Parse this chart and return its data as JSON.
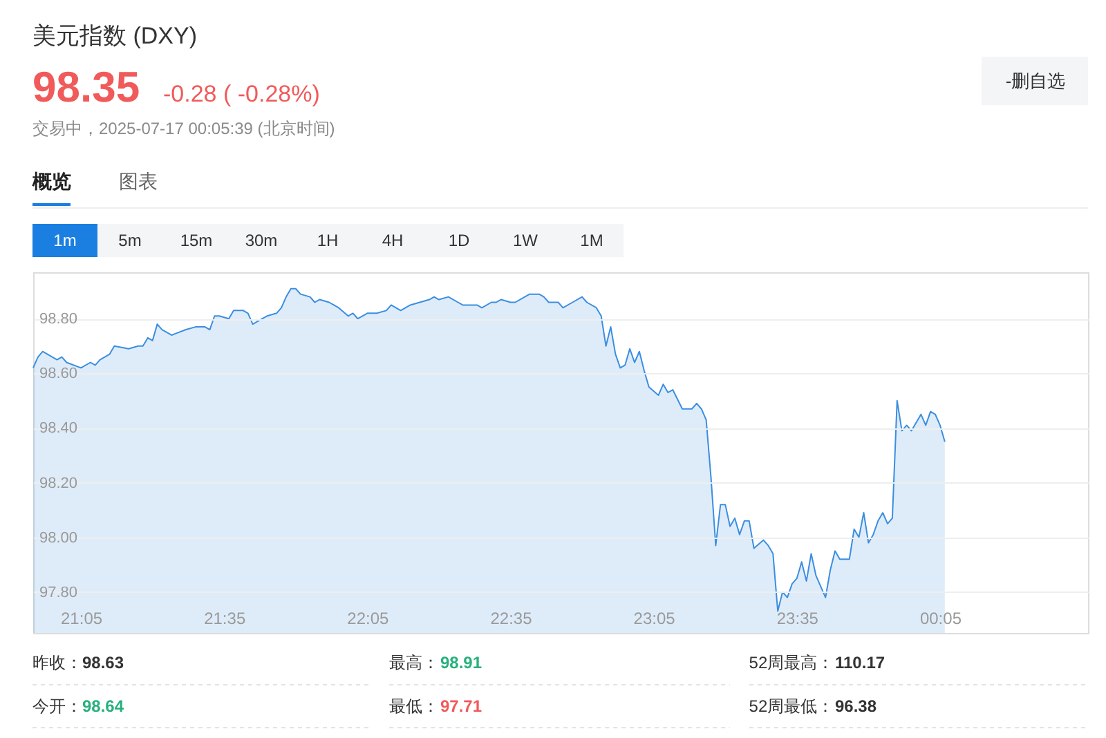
{
  "chart_data": {
    "type": "area",
    "title": "美元指数 (DXY)",
    "subtitle": "交易中，2025-07-17 00:05:39 (北京时间)",
    "annotations": [
      "98.35",
      "-0.28 ( -0.28%)",
      "-删自选",
      "概览",
      "图表",
      "1m",
      "5m",
      "15m",
      "30m",
      "1H",
      "4H",
      "1D",
      "1W",
      "1M",
      "昨收：",
      "98.63",
      "最高：",
      "98.91",
      "52周最高：",
      "110.17",
      "今开：",
      "98.64",
      "最低：",
      "97.71",
      "52周最低：",
      "96.38"
    ],
    "x": [
      "2025-07-16T20:55",
      "2025-07-16T20:56",
      "2025-07-16T20:57",
      "2025-07-16T20:59",
      "2025-07-16T21:00",
      "2025-07-16T21:01",
      "2025-07-16T21:02",
      "2025-07-16T21:05",
      "2025-07-16T21:07",
      "2025-07-16T21:08",
      "2025-07-16T21:09",
      "2025-07-16T21:11",
      "2025-07-16T21:12",
      "2025-07-16T21:15",
      "2025-07-16T21:17",
      "2025-07-16T21:18",
      "2025-07-16T21:19",
      "2025-07-16T21:20",
      "2025-07-16T21:21",
      "2025-07-16T21:22",
      "2025-07-16T21:24",
      "2025-07-16T21:27",
      "2025-07-16T21:29",
      "2025-07-16T21:31",
      "2025-07-16T21:32",
      "2025-07-16T21:33",
      "2025-07-16T21:34",
      "2025-07-16T21:36",
      "2025-07-16T21:37",
      "2025-07-16T21:39",
      "2025-07-16T21:40",
      "2025-07-16T21:41",
      "2025-07-16T21:43",
      "2025-07-16T21:44",
      "2025-07-16T21:46",
      "2025-07-16T21:47",
      "2025-07-16T21:48",
      "2025-07-16T21:49",
      "2025-07-16T21:50",
      "2025-07-16T21:51",
      "2025-07-16T21:53",
      "2025-07-16T21:54",
      "2025-07-16T21:55",
      "2025-07-16T21:57",
      "2025-07-16T21:58",
      "2025-07-16T21:59",
      "2025-07-16T22:01",
      "2025-07-16T22:02",
      "2025-07-16T22:03",
      "2025-07-16T22:04",
      "2025-07-16T22:05",
      "2025-07-16T22:07",
      "2025-07-16T22:09",
      "2025-07-16T22:10",
      "2025-07-16T22:12",
      "2025-07-16T22:14",
      "2025-07-16T22:16",
      "2025-07-16T22:18",
      "2025-07-16T22:19",
      "2025-07-16T22:20",
      "2025-07-16T22:22",
      "2025-07-16T22:24",
      "2025-07-16T22:25",
      "2025-07-16T22:28",
      "2025-07-16T22:29",
      "2025-07-16T22:31",
      "2025-07-16T22:32",
      "2025-07-16T22:33",
      "2025-07-16T22:35",
      "2025-07-16T22:36",
      "2025-07-16T22:38",
      "2025-07-16T22:39",
      "2025-07-16T22:41",
      "2025-07-16T22:42",
      "2025-07-16T22:43",
      "2025-07-16T22:45",
      "2025-07-16T22:46",
      "2025-07-16T22:48",
      "2025-07-16T22:50",
      "2025-07-16T22:51",
      "2025-07-16T22:53",
      "2025-07-16T22:54",
      "2025-07-16T22:55",
      "2025-07-16T22:56",
      "2025-07-16T22:57",
      "2025-07-16T22:58",
      "2025-07-16T22:59",
      "2025-07-16T23:00",
      "2025-07-16T23:01",
      "2025-07-16T23:02",
      "2025-07-16T23:03",
      "2025-07-16T23:04",
      "2025-07-16T23:06",
      "2025-07-16T23:07",
      "2025-07-16T23:08",
      "2025-07-16T23:09",
      "2025-07-16T23:11",
      "2025-07-16T23:13",
      "2025-07-16T23:14",
      "2025-07-16T23:15",
      "2025-07-16T23:16",
      "2025-07-16T23:17",
      "2025-07-16T23:18",
      "2025-07-16T23:19",
      "2025-07-16T23:20",
      "2025-07-16T23:21",
      "2025-07-16T23:22",
      "2025-07-16T23:23",
      "2025-07-16T23:24",
      "2025-07-16T23:25",
      "2025-07-16T23:26",
      "2025-07-16T23:28",
      "2025-07-16T23:29",
      "2025-07-16T23:30",
      "2025-07-16T23:31",
      "2025-07-16T23:32",
      "2025-07-16T23:33",
      "2025-07-16T23:34",
      "2025-07-16T23:35",
      "2025-07-16T23:36",
      "2025-07-16T23:37",
      "2025-07-16T23:38",
      "2025-07-16T23:39",
      "2025-07-16T23:41",
      "2025-07-16T23:42",
      "2025-07-16T23:43",
      "2025-07-16T23:44",
      "2025-07-16T23:46",
      "2025-07-16T23:47",
      "2025-07-16T23:48",
      "2025-07-16T23:49",
      "2025-07-16T23:50",
      "2025-07-16T23:51",
      "2025-07-16T23:52",
      "2025-07-16T23:53",
      "2025-07-16T23:54",
      "2025-07-16T23:55",
      "2025-07-16T23:56",
      "2025-07-16T23:57",
      "2025-07-16T23:58",
      "2025-07-16T23:59",
      "2025-07-17T00:00",
      "2025-07-17T00:01",
      "2025-07-17T00:02",
      "2025-07-17T00:03",
      "2025-07-17T00:04",
      "2025-07-17T00:05",
      "2025-07-17T00:06"
    ],
    "series": [
      {
        "color": "#3b8ee0",
        "values": [
          98.62,
          98.66,
          98.68,
          98.66,
          98.65,
          98.66,
          98.64,
          98.62,
          98.64,
          98.63,
          98.65,
          98.67,
          98.7,
          98.69,
          98.7,
          98.7,
          98.73,
          98.72,
          98.78,
          98.76,
          98.74,
          98.76,
          98.77,
          98.77,
          98.76,
          98.81,
          98.81,
          98.8,
          98.83,
          98.83,
          98.82,
          98.78,
          98.8,
          98.81,
          98.82,
          98.84,
          98.88,
          98.91,
          98.91,
          98.89,
          98.88,
          98.86,
          98.87,
          98.86,
          98.85,
          98.84,
          98.81,
          98.82,
          98.8,
          98.81,
          98.82,
          98.82,
          98.83,
          98.85,
          98.83,
          98.85,
          98.86,
          98.87,
          98.88,
          98.87,
          98.88,
          98.86,
          98.85,
          98.85,
          98.84,
          98.86,
          98.86,
          98.87,
          98.86,
          98.86,
          98.88,
          98.89,
          98.89,
          98.88,
          98.86,
          98.86,
          98.84,
          98.86,
          98.88,
          98.86,
          98.84,
          98.81,
          98.7,
          98.77,
          98.67,
          98.62,
          98.63,
          98.69,
          98.64,
          98.68,
          98.61,
          98.55,
          98.52,
          98.56,
          98.53,
          98.54,
          98.47,
          98.47,
          98.49,
          98.47,
          98.43,
          98.22,
          97.97,
          98.12,
          98.12,
          98.04,
          98.07,
          98.01,
          98.06,
          98.06,
          97.96,
          97.99,
          97.97,
          97.94,
          97.73,
          97.8,
          97.78,
          97.83,
          97.85,
          97.91,
          97.84,
          97.94,
          97.86,
          97.78,
          97.88,
          97.95,
          97.92,
          97.92,
          98.03,
          98.0,
          98.09,
          97.98,
          98.01,
          98.06,
          98.09,
          98.05,
          98.07,
          98.5,
          98.39,
          98.41,
          98.39,
          98.42,
          98.45,
          98.41,
          98.46,
          98.45,
          98.41,
          98.35
        ]
      }
    ],
    "xlim": [
      "2025-07-16T20:55",
      "2025-07-17T00:36"
    ],
    "ylim": [
      97.65,
      98.97
    ],
    "xticks": [
      {
        "value": "2025-07-16T21:05",
        "label": "21:05"
      },
      {
        "value": "2025-07-16T21:35",
        "label": "21:35"
      },
      {
        "value": "2025-07-16T22:05",
        "label": "22:05"
      },
      {
        "value": "2025-07-16T22:35",
        "label": "22:35"
      },
      {
        "value": "2025-07-16T23:05",
        "label": "23:05"
      },
      {
        "value": "2025-07-16T23:35",
        "label": "23:35"
      },
      {
        "value": "2025-07-17T00:05",
        "label": "00:05"
      }
    ],
    "yticks": [
      {
        "value": 97.8,
        "label": "97.80"
      },
      {
        "value": 98.0,
        "label": "98.00"
      },
      {
        "value": 98.2,
        "label": "98.20"
      },
      {
        "value": 98.4,
        "label": "98.40"
      },
      {
        "value": 98.6,
        "label": "98.60"
      },
      {
        "value": 98.8,
        "label": "98.80"
      }
    ],
    "grid": "y"
  }
}
